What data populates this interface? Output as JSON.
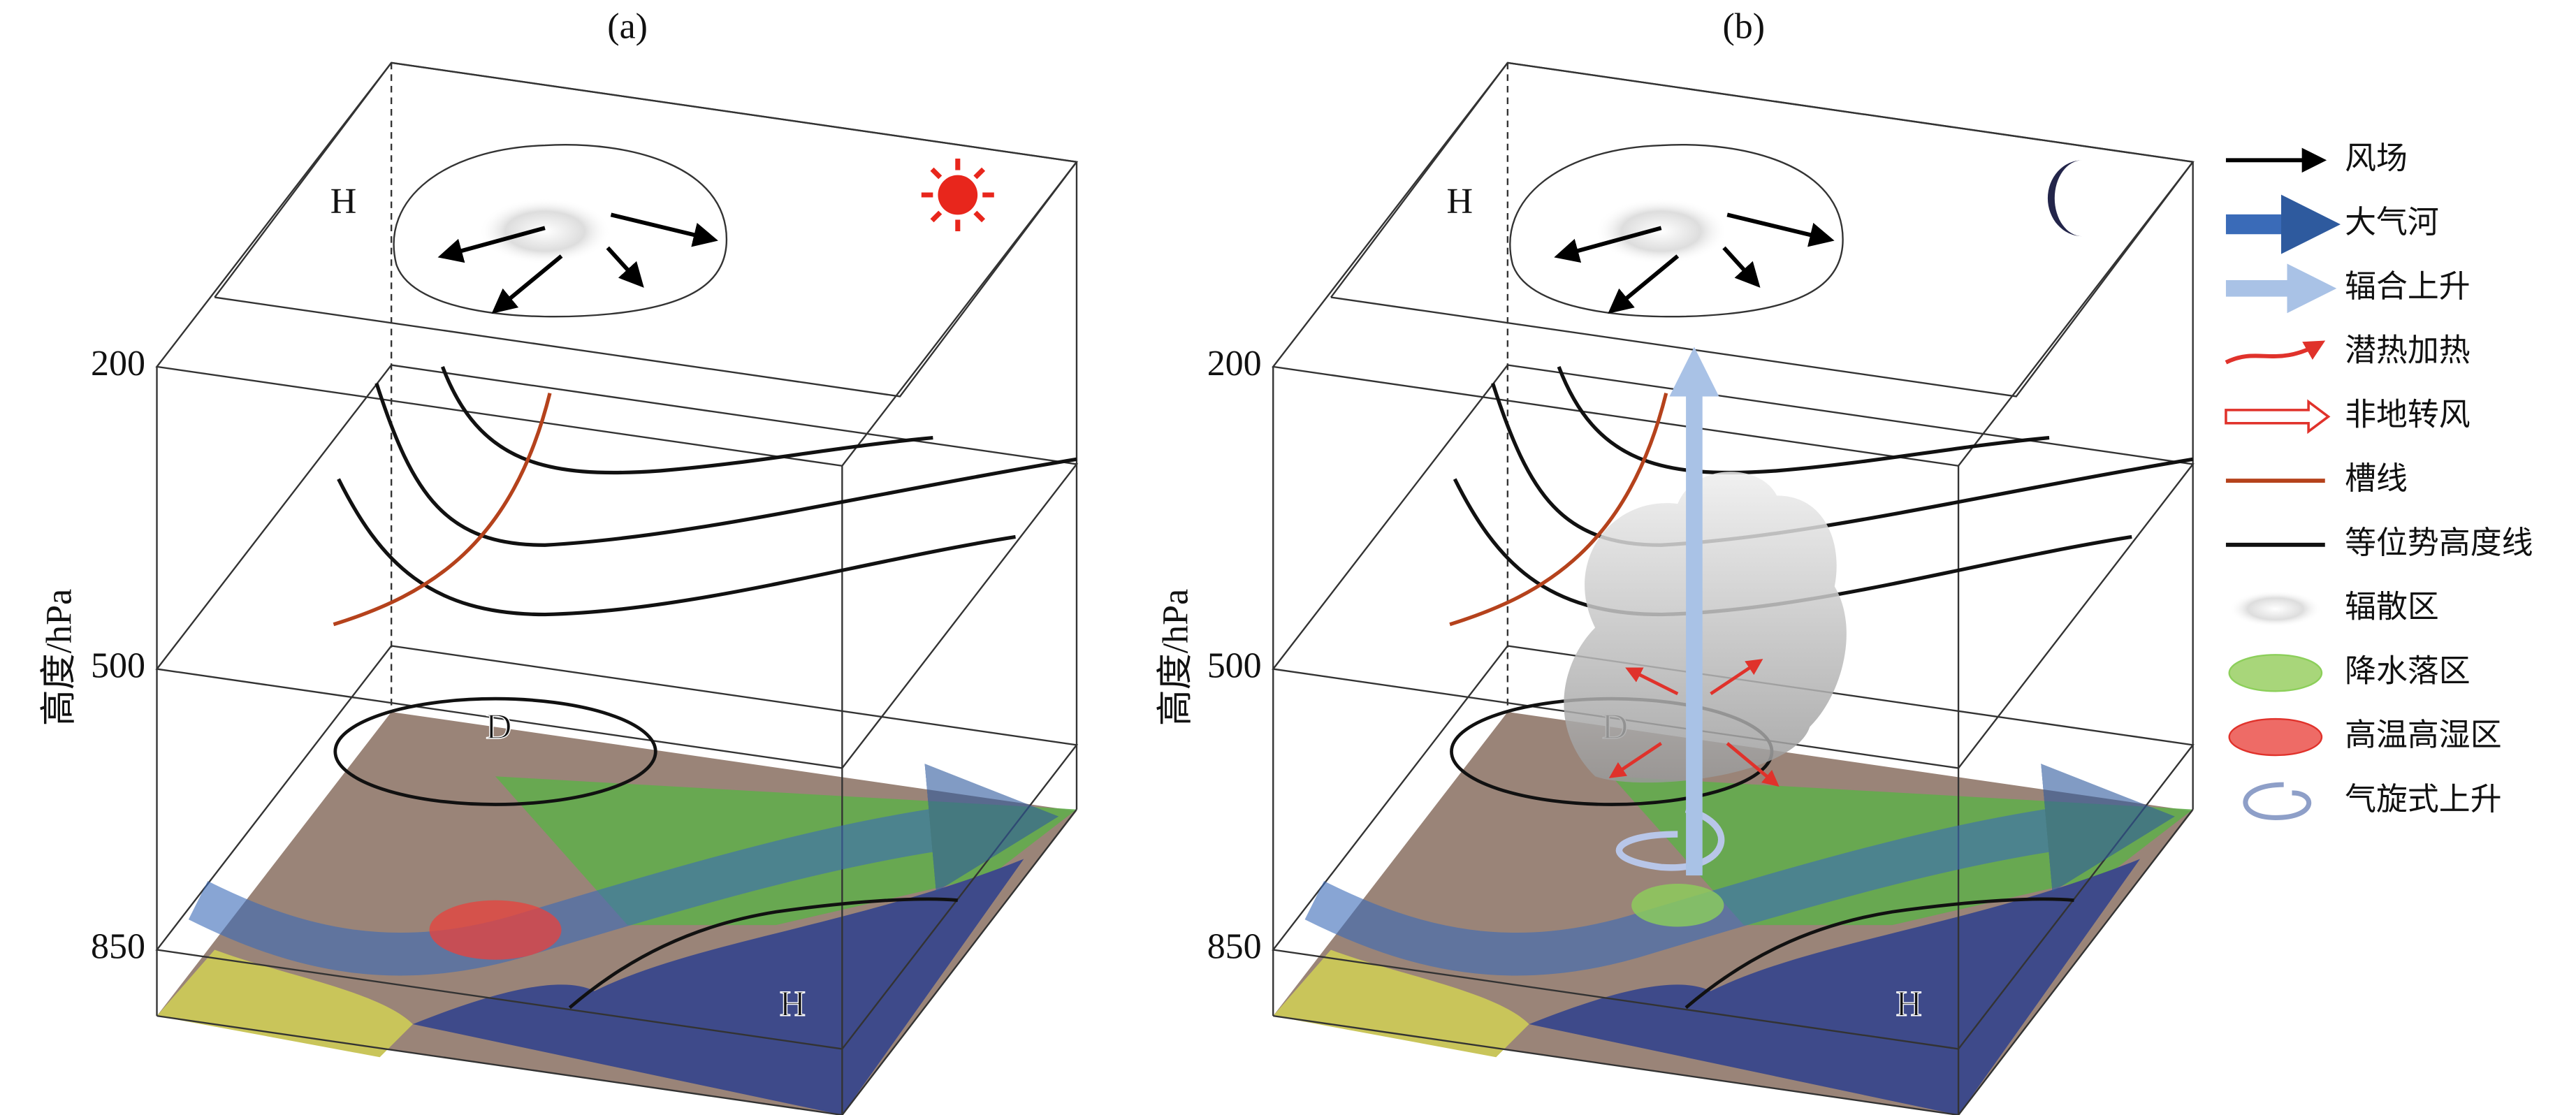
{
  "panels": [
    {
      "label": "(a)",
      "axis_label": "高度/hPa",
      "levels": [
        200,
        500,
        850
      ],
      "high_top": "H",
      "low_mid": "D",
      "high_bottom": "H"
    },
    {
      "label": "(b)",
      "axis_label": "高度/hPa",
      "levels": [
        200,
        500,
        850
      ],
      "high_top": "H",
      "low_mid": "D",
      "high_bottom": "H"
    }
  ],
  "legend": [
    "风场",
    "大气河",
    "辐合上升",
    "潜热加热",
    "非地转风",
    "槽线",
    "等位势高度线",
    "辐散区",
    "降水落区",
    "高温高湿区",
    "气旋式上升"
  ]
}
